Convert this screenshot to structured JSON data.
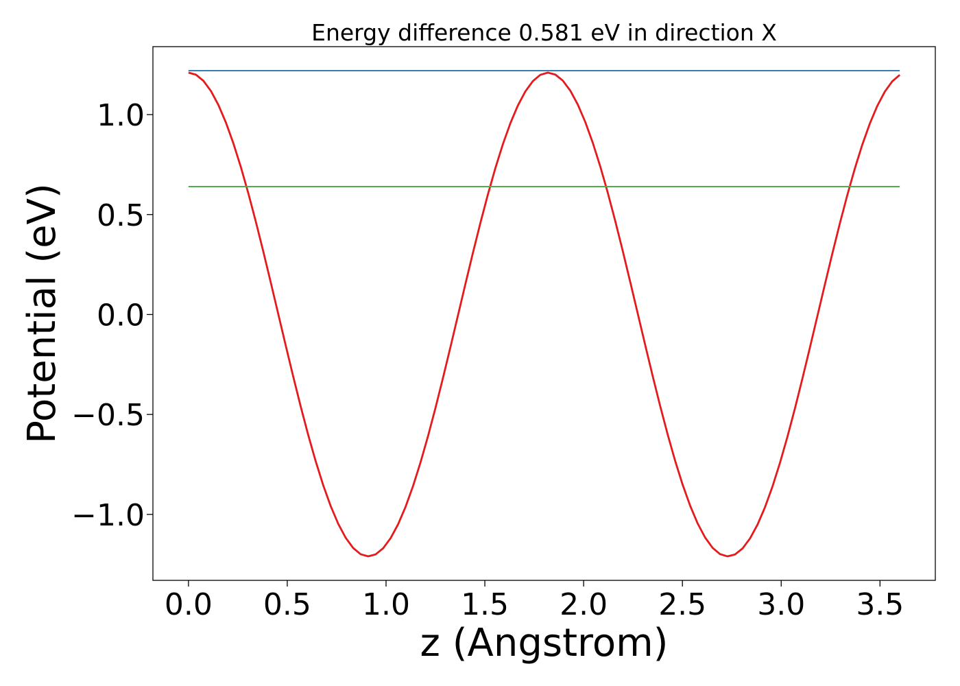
{
  "chart_data": {
    "type": "line",
    "title": "Energy difference 0.581 eV in direction X",
    "xlabel": "z (Angstrom)",
    "ylabel": "Potential (eV)",
    "xlim": [
      -0.18,
      3.78
    ],
    "ylim": [
      -1.33,
      1.34
    ],
    "xticks": [
      0.0,
      0.5,
      1.0,
      1.5,
      2.0,
      2.5,
      3.0,
      3.5
    ],
    "xtick_labels": [
      "0.0",
      "0.5",
      "1.0",
      "1.5",
      "2.0",
      "2.5",
      "3.0",
      "3.5"
    ],
    "yticks": [
      -1.0,
      -0.5,
      0.0,
      0.5,
      1.0
    ],
    "ytick_labels": [
      "−1.0",
      "−0.5",
      "0.0",
      "0.5",
      "1.0"
    ],
    "grid": false,
    "series": [
      {
        "kind": "cosine",
        "color": "#e41a1c",
        "x_start": 0.0,
        "x_end": 3.6,
        "points": 96,
        "amplitude": 1.21,
        "period": 1.82,
        "offset": 0.0
      },
      {
        "kind": "hline",
        "color": "#377eb8",
        "x_start": 0.0,
        "x_end": 3.6,
        "y": 1.22
      },
      {
        "kind": "hline",
        "color": "#4daf4a",
        "x_start": 0.0,
        "x_end": 3.6,
        "y": 0.64
      }
    ]
  }
}
